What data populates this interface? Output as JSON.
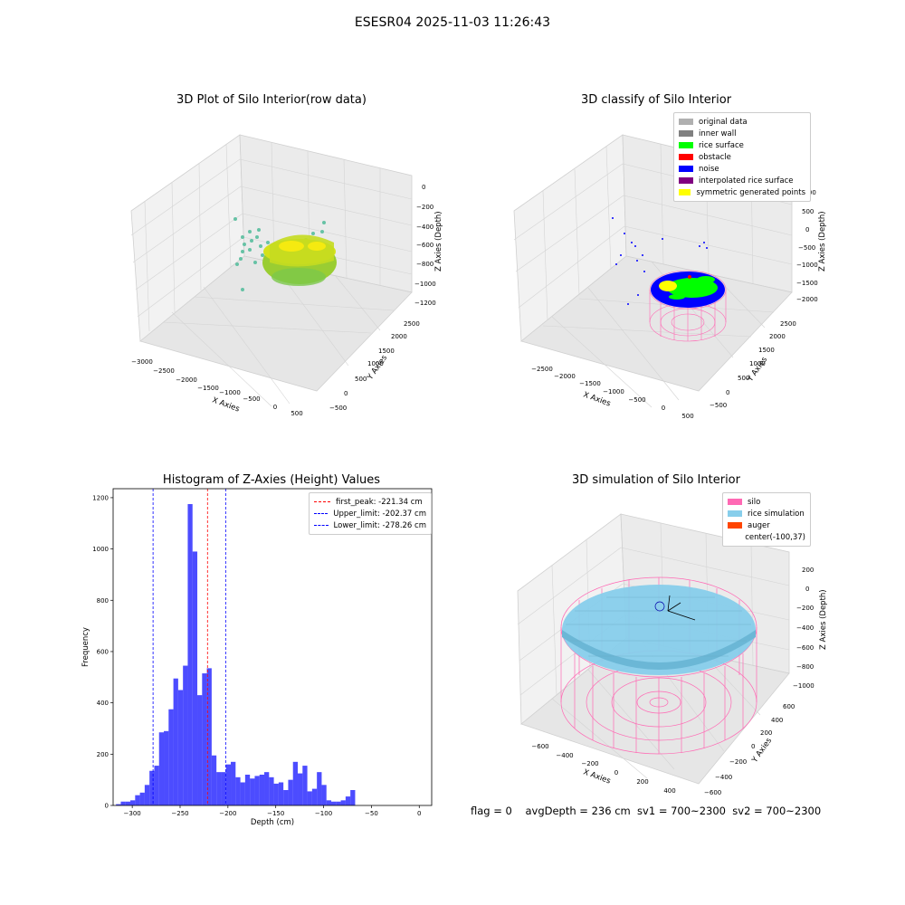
{
  "suptitle": "ESESR04 2025-11-03 11:26:43",
  "status_line": "flag = 0    avgDepth = 236 cm  sv1 = 700~2300  sv2 = 700~2300",
  "panels": {
    "p1": {
      "title": "3D Plot of Silo Interior(row data)",
      "xlabel": "X Axies",
      "ylabel": "Y Axies",
      "zlabel": "Z Axies (Depth)",
      "xticks": [
        "−3000",
        "−2500",
        "−2000",
        "−1500",
        "−1000",
        "−500",
        "0",
        "500"
      ],
      "yticks": [
        "−500",
        "0",
        "500",
        "1000",
        "1500",
        "2000",
        "2500"
      ],
      "zticks": [
        "0",
        "−200",
        "−400",
        "−600",
        "−800",
        "−1000",
        "−1200"
      ]
    },
    "p2": {
      "title": "3D classify of Silo Interior",
      "xlabel": "X Axies",
      "ylabel": "Y Axies",
      "zlabel": "Z Axies (Depth)",
      "xticks": [
        "−2500",
        "−2000",
        "−1500",
        "−1000",
        "−500",
        "0",
        "500"
      ],
      "yticks": [
        "−500",
        "0",
        "500",
        "1000",
        "1500",
        "2000",
        "2500"
      ],
      "zticks": [
        "1000",
        "500",
        "0",
        "−500",
        "−1000",
        "−1500",
        "−2000"
      ],
      "legend": [
        {
          "label": "original data",
          "color": "#b0b0b0"
        },
        {
          "label": "inner wall",
          "color": "#808080"
        },
        {
          "label": "rice surface",
          "color": "#00ff00"
        },
        {
          "label": "obstacle",
          "color": "#ff0000"
        },
        {
          "label": "noise",
          "color": "#0000ff"
        },
        {
          "label": "interpolated rice surface",
          "color": "#800080"
        },
        {
          "label": "symmetric generated points",
          "color": "#ffff00"
        }
      ]
    },
    "p4": {
      "title": "3D simulation of Silo Interior",
      "xlabel": "X Axies",
      "ylabel": "Y Axies",
      "zlabel": "Z Axies (Depth)",
      "xticks": [
        "−600",
        "−400",
        "−200",
        "0",
        "200",
        "400"
      ],
      "yticks": [
        "−600",
        "−400",
        "−200",
        "0",
        "200",
        "400",
        "600"
      ],
      "zticks": [
        "200",
        "0",
        "−200",
        "−400",
        "−600",
        "−800",
        "−1000"
      ],
      "legend": [
        {
          "label": "silo",
          "color": "#ff69b4"
        },
        {
          "label": "rice simulation",
          "color": "#87ceeb"
        },
        {
          "label": "auger",
          "color": "#ff4500"
        },
        {
          "label": "center(-100,37)",
          "color": ""
        }
      ]
    }
  },
  "chart_data": {
    "type": "bar",
    "title": "Histogram of Z-Axies (Height) Values",
    "xlabel": "Depth (cm)",
    "ylabel": "Frequency",
    "xlim": [
      -320,
      13
    ],
    "ylim": [
      0,
      1235
    ],
    "xticks": [
      -300,
      -250,
      -200,
      -150,
      -100,
      -50,
      0
    ],
    "yticks": [
      0,
      200,
      400,
      600,
      800,
      1000,
      1200
    ],
    "bin_start": -317,
    "bin_width": 5,
    "values": [
      5,
      15,
      15,
      20,
      40,
      50,
      80,
      135,
      155,
      285,
      290,
      375,
      495,
      450,
      545,
      1175,
      990,
      430,
      515,
      535,
      195,
      130,
      130,
      160,
      170,
      110,
      90,
      120,
      105,
      115,
      120,
      130,
      110,
      85,
      90,
      60,
      100,
      170,
      125,
      155,
      55,
      65,
      130,
      80,
      20,
      15,
      15,
      20,
      35,
      60
    ],
    "bar_color": "#0000ff",
    "lines": [
      {
        "label": "first_peak: -221.34 cm",
        "x": -221.34,
        "color": "#ff0000"
      },
      {
        "label": "Upper_limit: -202.37 cm",
        "x": -202.37,
        "color": "#0000ff"
      },
      {
        "label": "Lower_limit: -278.26 cm",
        "x": -278.26,
        "color": "#0000ff"
      }
    ],
    "legend_position": "top-right"
  }
}
